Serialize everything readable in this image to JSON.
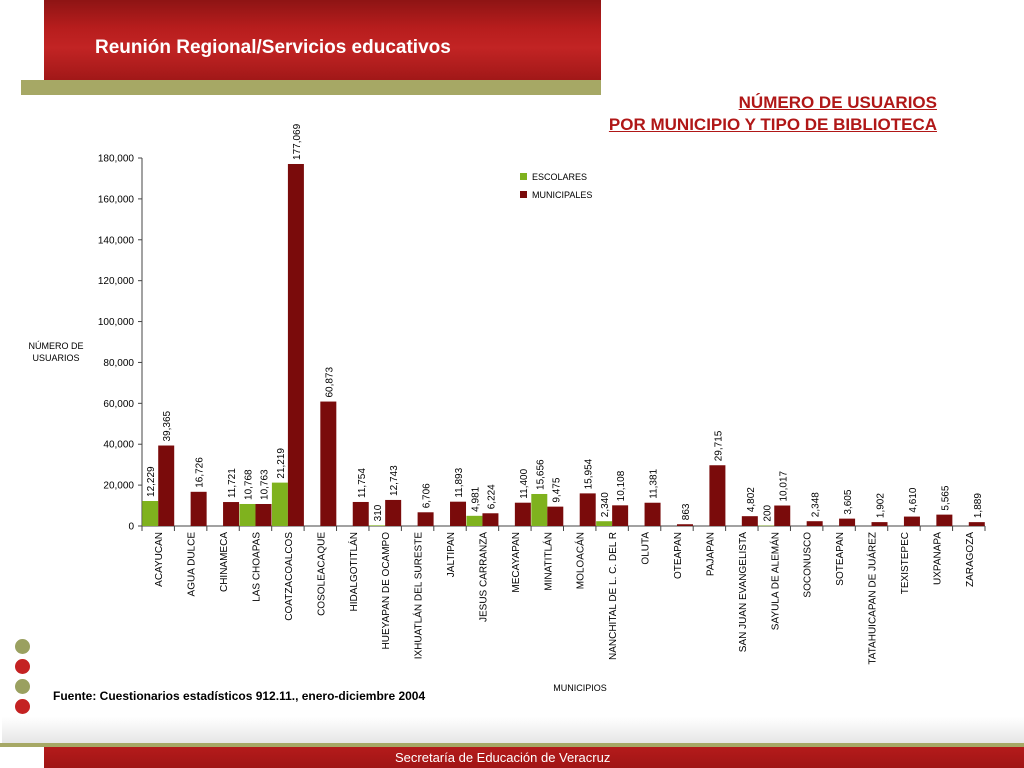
{
  "header": {
    "title": "Reunión Regional/Servicios educativos"
  },
  "chart_title": {
    "line1": "NÚMERO DE USUARIOS",
    "line2": "POR MUNICIPIO Y TIPO DE BIBLIOTECA"
  },
  "source_note": "Fuente: Cuestionarios estadísticos 912.11., enero-diciembre 2004",
  "footer": {
    "text": "Secretaría de Educación de Veracruz"
  },
  "colors": {
    "escolares": "#7fb21e",
    "municipales": "#7a0b0b",
    "accent_red": "#b01717",
    "olive": "#a6a865"
  },
  "chart_data": {
    "type": "bar",
    "xlabel": "MUNICIPIOS",
    "ylabel": "NÚMERO DE USUARIOS",
    "ylim": [
      0,
      180000
    ],
    "yticks": [
      "0",
      "20,000",
      "40,000",
      "60,000",
      "80,000",
      "100,000",
      "120,000",
      "140,000",
      "160,000",
      "180,000"
    ],
    "legend_position": "top-right",
    "grid": false,
    "categories": [
      "ACAYUCAN",
      "AGUA DULCE",
      "CHINAMECA",
      "LAS CHOAPAS",
      "COATZACOALCOS",
      "COSOLEACAQUE",
      "HIDALGOTITLÁN",
      "HUEYAPAN DE OCAMPO",
      "IXHUATLÁN DEL SURESTE",
      "JALTIPAN",
      "JESUS CARRANZA",
      "MECAYAPAN",
      "MINATITLÁN",
      "MOLOACÁN",
      "NANCHITAL DE L. C. DEL R",
      "OLUTA",
      "OTEAPAN",
      "PAJAPAN",
      "SAN JUAN EVANGELISTA",
      "SAYULA DE ALEMÁN",
      "SOCONUSCO",
      "SOTEAPAN",
      "TATAHUICAPAN DE JUÁREZ",
      "TEXISTEPEC",
      "UXPANAPA",
      "ZARAGOZA"
    ],
    "series": [
      {
        "name": "ESCOLARES",
        "values": [
          12229,
          null,
          null,
          10768,
          21219,
          null,
          null,
          310,
          null,
          null,
          4981,
          null,
          15656,
          null,
          2340,
          null,
          null,
          null,
          null,
          200,
          null,
          null,
          null,
          null,
          null,
          null
        ],
        "labels": [
          "12,229",
          "",
          "",
          "10,768",
          "21,219",
          "",
          "",
          "310",
          "",
          "",
          "4,981",
          "",
          "15,656",
          "",
          "2,340",
          "",
          "",
          "",
          "",
          "200",
          "",
          "",
          "",
          "",
          "",
          ""
        ]
      },
      {
        "name": "MUNICIPALES",
        "values": [
          39365,
          16726,
          11721,
          10763,
          177069,
          60873,
          11754,
          12743,
          6706,
          11893,
          6224,
          11400,
          9475,
          15954,
          10108,
          11381,
          863,
          29715,
          4802,
          10017,
          2348,
          3605,
          1902,
          4610,
          5565,
          1889
        ],
        "labels": [
          "39,365",
          "16,726",
          "11,721",
          "10,763",
          "177,069",
          "60,873",
          "11,754",
          "12,743",
          "6,706",
          "11,893",
          "6,224",
          "11,400",
          "9,475",
          "15,954",
          "10,108",
          "11,381",
          "863",
          "29,715",
          "4,802",
          "10,017",
          "2,348",
          "3,605",
          "1,902",
          "4,610",
          "5,565",
          "1,889"
        ]
      }
    ]
  }
}
